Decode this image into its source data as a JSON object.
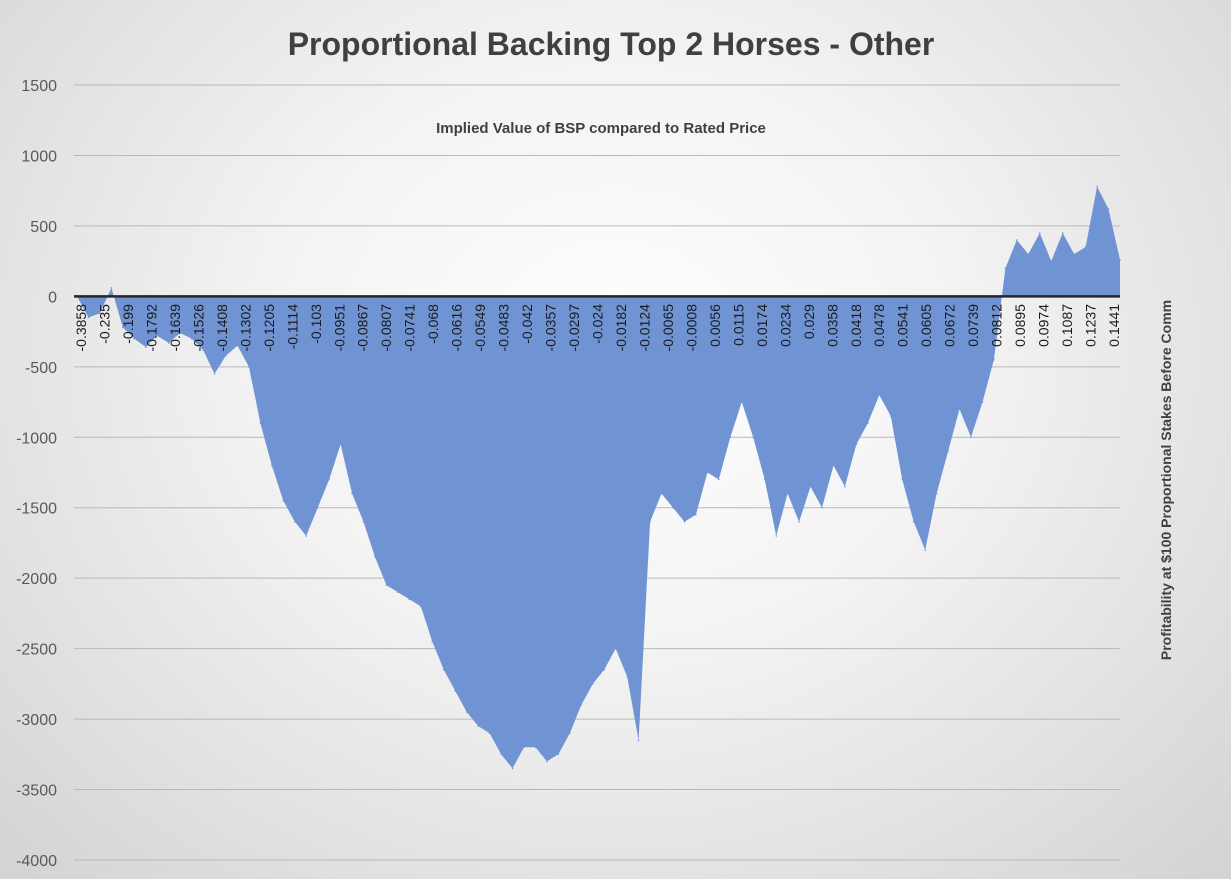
{
  "chart_data": {
    "type": "area",
    "title": "Proportional Backing Top 2 Horses - Other",
    "subtitle": "Implied Value of BSP compared to Rated Price",
    "xlabel": "",
    "ylabel": "Profitability at $100 Proportional Stakes Before Comm",
    "ylim": [
      -4000,
      1500
    ],
    "yticks": [
      1500,
      1000,
      500,
      0,
      -500,
      -1000,
      -1500,
      -2000,
      -2500,
      -3000,
      -3500,
      -4000
    ],
    "grid": true,
    "legend": "none",
    "colors": {
      "fill": "#7094d3",
      "axis": "#262626",
      "grid": "#b8b8b8"
    },
    "x_tick_labels": [
      "-0.3858",
      "-0.235",
      "-0.199",
      "-0.1792",
      "-0.1639",
      "-0.1526",
      "-0.1408",
      "-0.1302",
      "-0.1205",
      "-0.1114",
      "-0.103",
      "-0.0951",
      "-0.0867",
      "-0.0807",
      "-0.0741",
      "-0.068",
      "-0.0616",
      "-0.0549",
      "-0.0483",
      "-0.042",
      "-0.0357",
      "-0.0297",
      "-0.024",
      "-0.0182",
      "-0.0124",
      "-0.0065",
      "-0.0008",
      "0.0056",
      "0.0115",
      "0.0174",
      "0.0234",
      "0.029",
      "0.0358",
      "0.0418",
      "0.0478",
      "0.0541",
      "0.0605",
      "0.0672",
      "0.0739",
      "0.0812",
      "0.0895",
      "0.0974",
      "0.1087",
      "0.1237",
      "0.1441"
    ],
    "series": [
      {
        "name": "",
        "x": [
          -0.3858,
          -0.33,
          -0.2876,
          -0.25,
          -0.235,
          -0.22,
          -0.199,
          -0.19,
          -0.1792,
          -0.172,
          -0.1639,
          -0.158,
          -0.1526,
          -0.147,
          -0.1408,
          -0.136,
          -0.1302,
          -0.1255,
          -0.1205,
          -0.116,
          -0.1114,
          -0.107,
          -0.103,
          -0.099,
          -0.0951,
          -0.091,
          -0.0867,
          -0.084,
          -0.0807,
          -0.077,
          -0.0741,
          -0.071,
          -0.068,
          -0.065,
          -0.0616,
          -0.058,
          -0.0549,
          -0.0515,
          -0.0483,
          -0.045,
          -0.042,
          -0.039,
          -0.0357,
          -0.033,
          -0.0297,
          -0.027,
          -0.024,
          -0.021,
          -0.0182,
          -0.016,
          -0.0124,
          -0.0095,
          -0.0065,
          -0.0035,
          -0.0008,
          0.0025,
          0.0056,
          0.0085,
          0.0115,
          0.0145,
          0.0174,
          0.0205,
          0.0234,
          0.026,
          0.029,
          0.0325,
          0.0358,
          0.039,
          0.0418,
          0.045,
          0.0478,
          0.051,
          0.0541,
          0.057,
          0.0605,
          0.064,
          0.0672,
          0.0705,
          0.0739,
          0.077,
          0.0812,
          0.0855,
          0.0895,
          0.0935,
          0.0974,
          0.103,
          0.1087,
          0.116,
          0.1237,
          0.134,
          0.1441,
          0.152
        ],
        "values": [
          0,
          -150,
          -120,
          60,
          -220,
          -300,
          -360,
          -280,
          -330,
          -260,
          -300,
          -380,
          -550,
          -420,
          -350,
          -500,
          -900,
          -1200,
          -1450,
          -1600,
          -1700,
          -1500,
          -1300,
          -1050,
          -1400,
          -1600,
          -1850,
          -2050,
          -2100,
          -2150,
          -2200,
          -2450,
          -2650,
          -2800,
          -2950,
          -3050,
          -3100,
          -3250,
          -3350,
          -3200,
          -3200,
          -3300,
          -3250,
          -3100,
          -2900,
          -2750,
          -2650,
          -2500,
          -2700,
          -3150,
          -1600,
          -1400,
          -1500,
          -1600,
          -1550,
          -1250,
          -1300,
          -1000,
          -750,
          -1000,
          -1300,
          -1700,
          -1400,
          -1600,
          -1350,
          -1500,
          -1200,
          -1350,
          -1050,
          -900,
          -700,
          -850,
          -1300,
          -1600,
          -1800,
          -1400,
          -1100,
          -800,
          -1000,
          -750,
          -450,
          200,
          400,
          300,
          450,
          250,
          450,
          300,
          350,
          780,
          620,
          260
        ]
      }
    ]
  }
}
